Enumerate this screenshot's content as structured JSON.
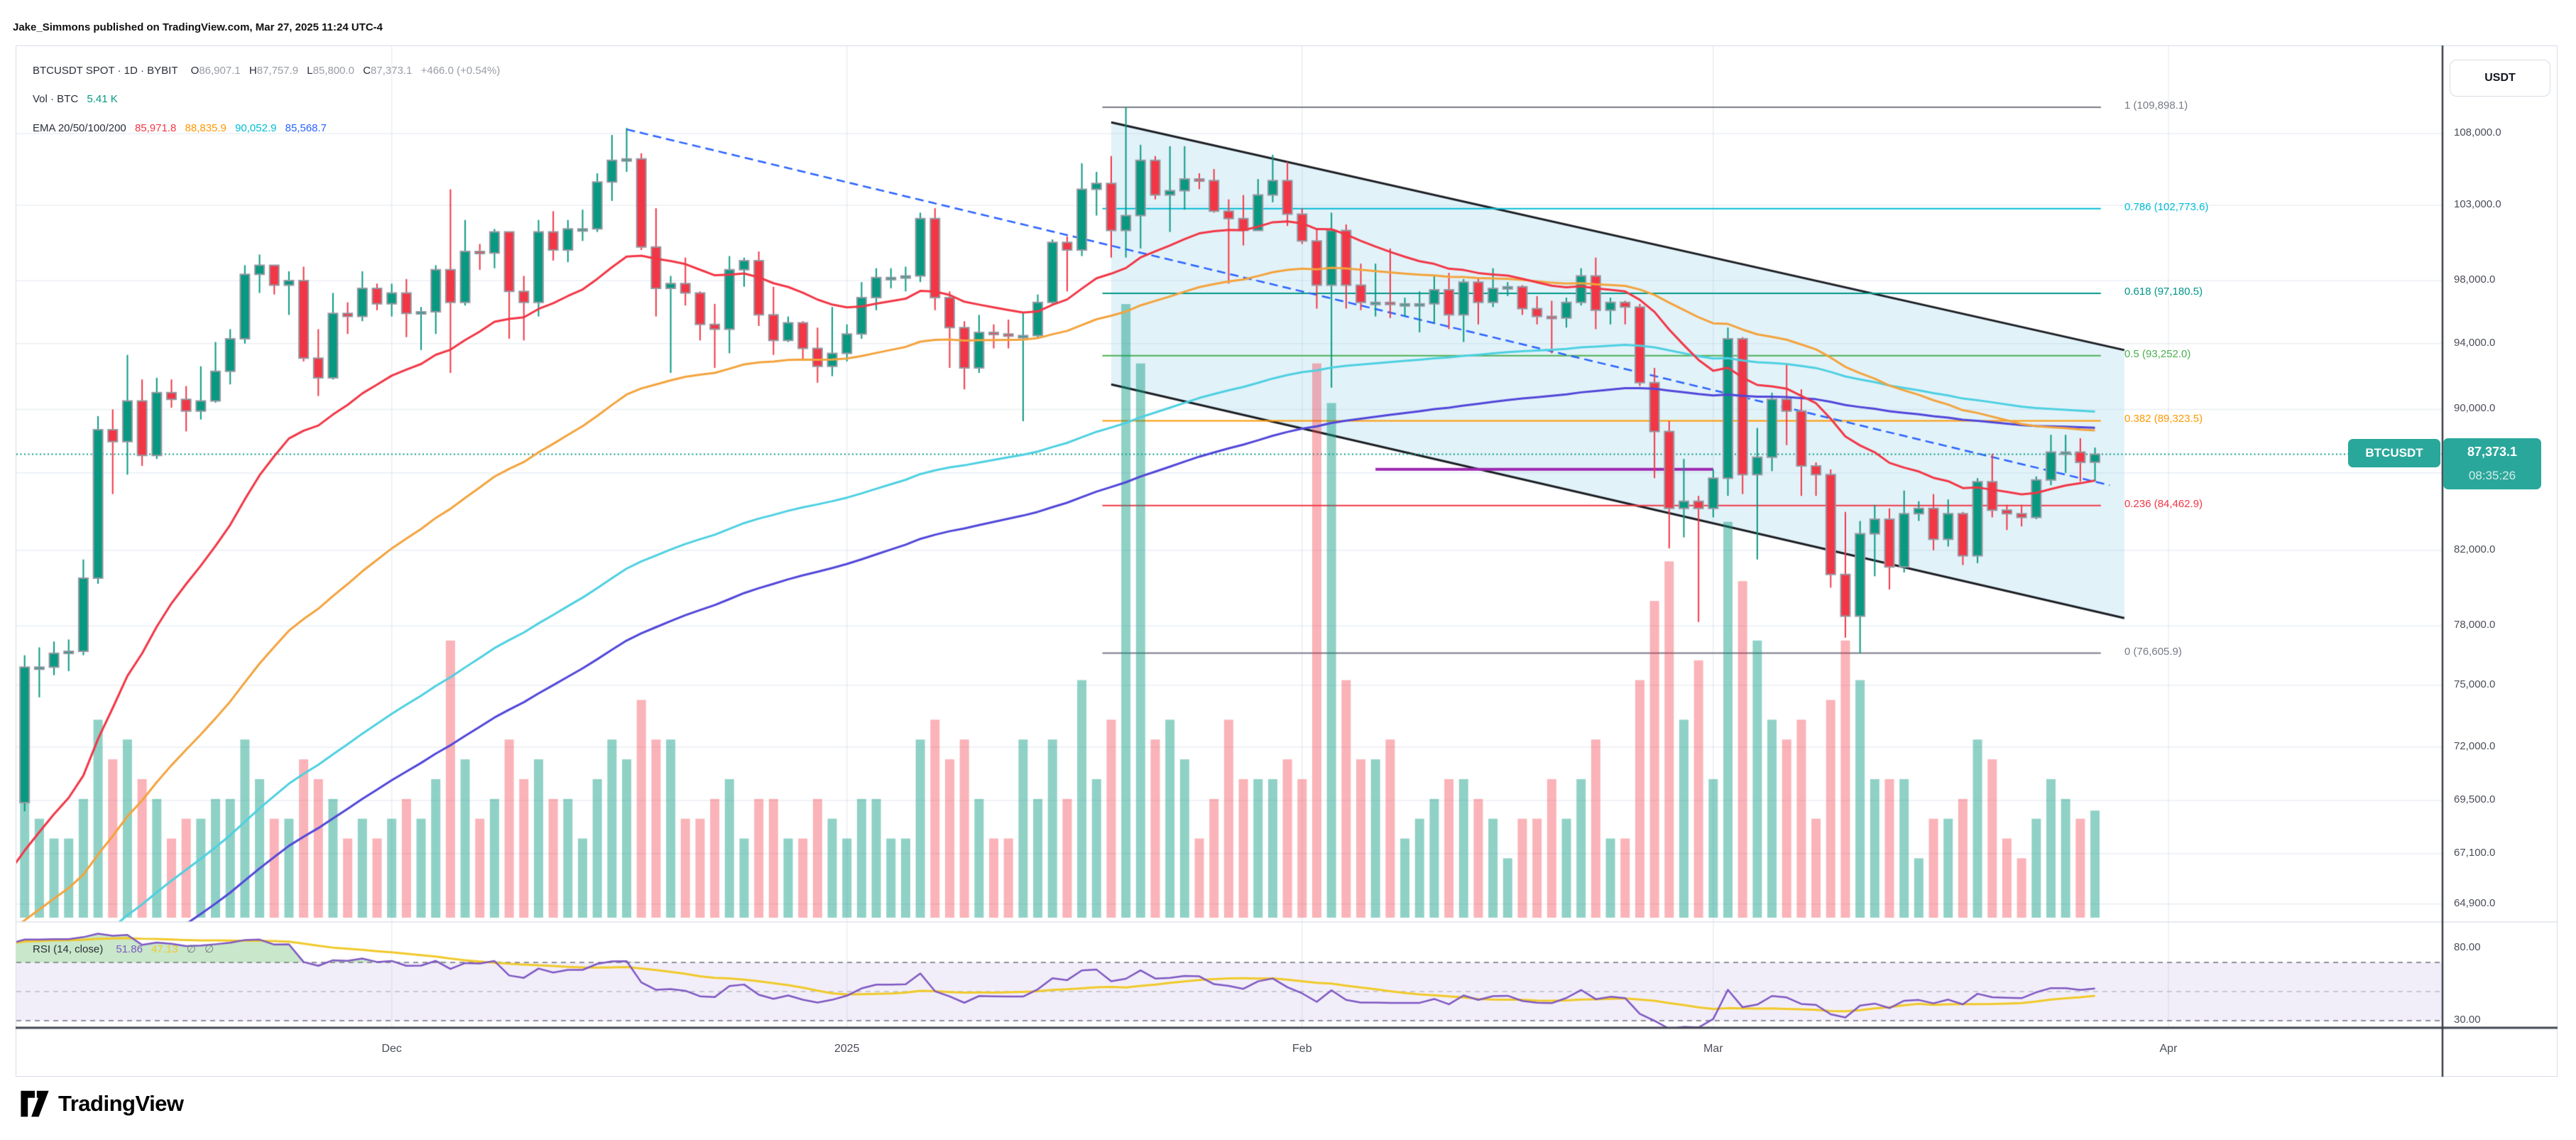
{
  "published_line": "Jake_Simmons published on TradingView.com, Mar 27, 2025 11:24 UTC-4",
  "toolbar": {
    "currency_button": "USDT"
  },
  "legend": {
    "title": "BTCUSDT SPOT · 1D · BYBIT",
    "open_label": "O",
    "open": "86,907.1",
    "high_label": "H",
    "high": "87,757.9",
    "low_label": "L",
    "low": "85,800.0",
    "close_label": "C",
    "close": "87,373.1",
    "change": "+466.0 (+0.54%)",
    "vol_label": "Vol · BTC",
    "vol_value": "5.41 K",
    "vol_color": "#089981",
    "ema_label": "EMA 20/50/100/200",
    "ema_values": [
      {
        "text": "85,971.8",
        "color": "#f23645"
      },
      {
        "text": "88,835.9",
        "color": "#ff9800"
      },
      {
        "text": "90,052.9",
        "color": "#00bcd4"
      },
      {
        "text": "85,568.7",
        "color": "#2962ff"
      }
    ]
  },
  "rsi_legend": {
    "title": "RSI (14, close)",
    "value": "51.86",
    "value_color": "#7e57c2",
    "ma_value": "47.13",
    "ma_color": "#f0c929",
    "empty1": "∅",
    "empty2": "∅",
    "empty_color": "#787b86"
  },
  "price_badge": {
    "symbol_tag": "BTCUSDT",
    "price": "87,373.1",
    "countdown": "08:35:26",
    "color": "#2aa79b"
  },
  "price_axis": {
    "ticks": [
      {
        "price": 108000,
        "label": "108,000.0"
      },
      {
        "price": 103000,
        "label": "103,000.0"
      },
      {
        "price": 98000,
        "label": "98,000.0"
      },
      {
        "price": 94000,
        "label": "94,000.0"
      },
      {
        "price": 90000,
        "label": "90,000.0"
      },
      {
        "price": 86300,
        "label": ""
      },
      {
        "price": 82000,
        "label": "82,000.0"
      },
      {
        "price": 78000,
        "label": "78,000.0"
      },
      {
        "price": 75000,
        "label": "75,000.0"
      },
      {
        "price": 72000,
        "label": "72,000.0"
      },
      {
        "price": 69500,
        "label": "69,500.0"
      },
      {
        "price": 67100,
        "label": "67,100.0"
      },
      {
        "price": 64900,
        "label": "64,900.0"
      }
    ],
    "rsi_ticks": [
      {
        "value": 80,
        "label": "80.00"
      },
      {
        "value": 30,
        "label": "30.00"
      }
    ]
  },
  "time_axis": {
    "ticks": [
      {
        "day": 26,
        "label": "Dec"
      },
      {
        "day": 57,
        "label": "2025"
      },
      {
        "day": 88,
        "label": "Feb"
      },
      {
        "day": 116,
        "label": "Mar"
      },
      {
        "day": 147,
        "label": "Apr"
      }
    ]
  },
  "logo": {
    "text": "TradingView"
  },
  "chart_data": {
    "type": "candlestick",
    "symbol": "BTCUSDT",
    "market": "SPOT",
    "interval": "1D",
    "exchange": "BYBIT",
    "price_scale": "log",
    "current_price": 87373.1,
    "current_volume_k": 5.41,
    "up_color": "#089981",
    "down_color": "#f23645",
    "body_border_color": "#9598a1",
    "volume_up_color": "rgba(8,153,129,0.45)",
    "volume_down_color": "rgba(242,54,69,0.38)",
    "grid_color": "rgba(90,120,170,0.13)",
    "current_price_line_color": "#089981",
    "candles": [
      [
        67800,
        70600,
        67500,
        69400,
        5
      ],
      [
        69400,
        76500,
        69000,
        75900,
        8
      ],
      [
        75900,
        76900,
        74400,
        75900,
        5
      ],
      [
        75900,
        77200,
        75500,
        76600,
        4
      ],
      [
        76600,
        77300,
        75700,
        76700,
        4
      ],
      [
        76700,
        81500,
        76500,
        80500,
        6
      ],
      [
        80500,
        89600,
        80200,
        88800,
        10
      ],
      [
        88800,
        90000,
        85100,
        88100,
        8
      ],
      [
        88100,
        93300,
        86200,
        90500,
        9
      ],
      [
        90500,
        91800,
        86700,
        87300,
        7
      ],
      [
        87300,
        91900,
        87100,
        91000,
        6
      ],
      [
        91000,
        91800,
        90100,
        90600,
        4
      ],
      [
        90600,
        91400,
        88700,
        89900,
        5
      ],
      [
        89900,
        92600,
        89400,
        90500,
        5
      ],
      [
        90500,
        94100,
        90400,
        92300,
        6
      ],
      [
        92300,
        94900,
        91500,
        94300,
        6
      ],
      [
        94300,
        99000,
        94000,
        98400,
        9
      ],
      [
        98400,
        99700,
        97200,
        99000,
        7
      ],
      [
        99000,
        99000,
        97100,
        97700,
        5
      ],
      [
        97700,
        98600,
        95800,
        98000,
        5
      ],
      [
        98000,
        98900,
        92900,
        93100,
        8
      ],
      [
        93100,
        94900,
        90800,
        91900,
        7
      ],
      [
        91900,
        97200,
        91800,
        95900,
        6
      ],
      [
        95900,
        96600,
        94600,
        95700,
        4
      ],
      [
        95700,
        98600,
        95400,
        97500,
        5
      ],
      [
        97500,
        97800,
        96100,
        96500,
        4
      ],
      [
        96500,
        97800,
        95700,
        97200,
        5
      ],
      [
        97200,
        98100,
        94400,
        95900,
        6
      ],
      [
        95900,
        96300,
        93600,
        96000,
        5
      ],
      [
        96000,
        99000,
        94600,
        98700,
        7
      ],
      [
        98700,
        104100,
        92200,
        96600,
        14
      ],
      [
        96600,
        102000,
        96400,
        99900,
        8
      ],
      [
        99900,
        100400,
        98700,
        99800,
        5
      ],
      [
        99800,
        101400,
        98800,
        101200,
        6
      ],
      [
        101200,
        101200,
        94300,
        97300,
        9
      ],
      [
        97300,
        98300,
        94200,
        96600,
        7
      ],
      [
        96600,
        102000,
        95700,
        101200,
        8
      ],
      [
        101200,
        102600,
        99300,
        100000,
        6
      ],
      [
        100000,
        102000,
        99200,
        101400,
        6
      ],
      [
        101400,
        102700,
        100600,
        101400,
        4
      ],
      [
        101400,
        105200,
        101200,
        104600,
        7
      ],
      [
        104600,
        107900,
        103300,
        106100,
        9
      ],
      [
        106100,
        108400,
        105300,
        106200,
        8
      ],
      [
        106200,
        106600,
        100000,
        100200,
        11
      ],
      [
        100200,
        102800,
        95700,
        97500,
        9
      ],
      [
        97500,
        98300,
        92200,
        97800,
        9
      ],
      [
        97800,
        99500,
        96400,
        97200,
        5
      ],
      [
        97200,
        97300,
        94200,
        95200,
        5
      ],
      [
        95200,
        96500,
        92500,
        94900,
        6
      ],
      [
        94900,
        99600,
        93400,
        98700,
        7
      ],
      [
        98700,
        99500,
        97600,
        99300,
        4
      ],
      [
        99300,
        99900,
        95100,
        95800,
        6
      ],
      [
        95800,
        97600,
        93300,
        94200,
        6
      ],
      [
        94200,
        95700,
        94100,
        95300,
        4
      ],
      [
        95300,
        95400,
        93000,
        93700,
        4
      ],
      [
        93700,
        95000,
        91600,
        92600,
        6
      ],
      [
        92600,
        96300,
        92000,
        93400,
        5
      ],
      [
        93400,
        95200,
        92900,
        94600,
        4
      ],
      [
        94600,
        97900,
        94300,
        96900,
        6
      ],
      [
        96900,
        98800,
        96100,
        98200,
        6
      ],
      [
        98200,
        98800,
        97500,
        98200,
        4
      ],
      [
        98200,
        98900,
        97300,
        98300,
        4
      ],
      [
        98300,
        102500,
        97900,
        102100,
        9
      ],
      [
        102100,
        102800,
        96100,
        96900,
        10
      ],
      [
        96900,
        97300,
        92500,
        95000,
        8
      ],
      [
        95000,
        95400,
        91200,
        92500,
        9
      ],
      [
        92500,
        95800,
        92200,
        94700,
        6
      ],
      [
        94700,
        95200,
        93700,
        94600,
        4
      ],
      [
        94600,
        95500,
        93700,
        94500,
        4
      ],
      [
        94500,
        95900,
        89300,
        94500,
        9
      ],
      [
        94500,
        97100,
        94300,
        96600,
        6
      ],
      [
        96600,
        100700,
        96500,
        100500,
        9
      ],
      [
        100500,
        100900,
        97300,
        100000,
        6
      ],
      [
        100000,
        105900,
        99600,
        104100,
        12
      ],
      [
        104100,
        105300,
        102300,
        104500,
        7
      ],
      [
        104500,
        106400,
        99500,
        101300,
        10
      ],
      [
        101300,
        109900,
        99500,
        102300,
        31
      ],
      [
        102300,
        107200,
        100100,
        106100,
        28
      ],
      [
        106100,
        106400,
        103400,
        103700,
        9
      ],
      [
        103700,
        107100,
        101200,
        104000,
        10
      ],
      [
        104000,
        107100,
        102700,
        104800,
        8
      ],
      [
        104800,
        105200,
        104100,
        104700,
        4
      ],
      [
        104700,
        105500,
        102500,
        102600,
        6
      ],
      [
        102600,
        103400,
        97800,
        102100,
        10
      ],
      [
        102100,
        103700,
        100300,
        101300,
        7
      ],
      [
        101300,
        104800,
        101300,
        103700,
        7
      ],
      [
        103700,
        106500,
        103200,
        104700,
        7
      ],
      [
        104700,
        106000,
        101600,
        102400,
        8
      ],
      [
        102400,
        102800,
        100400,
        100600,
        7
      ],
      [
        100600,
        101400,
        96200,
        97700,
        28
      ],
      [
        97700,
        102500,
        91300,
        101300,
        26
      ],
      [
        101300,
        101700,
        96200,
        97700,
        12
      ],
      [
        97700,
        99100,
        96100,
        96600,
        8
      ],
      [
        96600,
        99100,
        95700,
        96600,
        8
      ],
      [
        96600,
        100100,
        95600,
        96500,
        9
      ],
      [
        96500,
        96900,
        95700,
        96500,
        4
      ],
      [
        96500,
        97300,
        94700,
        96500,
        5
      ],
      [
        96500,
        98300,
        95300,
        97400,
        6
      ],
      [
        97400,
        98500,
        94900,
        95800,
        7
      ],
      [
        95800,
        98100,
        94100,
        97900,
        7
      ],
      [
        97900,
        98100,
        95200,
        96600,
        6
      ],
      [
        96600,
        98800,
        96300,
        97500,
        5
      ],
      [
        97500,
        97900,
        97000,
        97600,
        3
      ],
      [
        97600,
        97700,
        95800,
        96200,
        5
      ],
      [
        96200,
        97000,
        95200,
        95700,
        5
      ],
      [
        95700,
        96700,
        93400,
        95600,
        7
      ],
      [
        95600,
        96900,
        95000,
        96600,
        5
      ],
      [
        96600,
        98800,
        96400,
        98300,
        7
      ],
      [
        98300,
        99500,
        94900,
        96100,
        9
      ],
      [
        96100,
        96900,
        95200,
        96600,
        4
      ],
      [
        96600,
        96700,
        95200,
        96300,
        4
      ],
      [
        96300,
        96500,
        91400,
        91600,
        12
      ],
      [
        91600,
        92500,
        86000,
        88700,
        16
      ],
      [
        88700,
        89300,
        82100,
        84300,
        18
      ],
      [
        84300,
        87100,
        82700,
        84700,
        10
      ],
      [
        84700,
        85000,
        78200,
        84300,
        13
      ],
      [
        84300,
        86500,
        83800,
        86000,
        7
      ],
      [
        86000,
        95000,
        85000,
        94300,
        20
      ],
      [
        94300,
        94400,
        85100,
        86200,
        17
      ],
      [
        86200,
        88900,
        81500,
        87200,
        14
      ],
      [
        87200,
        91000,
        86400,
        90600,
        10
      ],
      [
        90600,
        92800,
        87900,
        89900,
        9
      ],
      [
        89900,
        91200,
        85000,
        86700,
        10
      ],
      [
        86700,
        86900,
        85000,
        86200,
        5
      ],
      [
        86200,
        86500,
        80000,
        80700,
        11
      ],
      [
        80700,
        84100,
        77400,
        78500,
        14
      ],
      [
        78500,
        83600,
        76600,
        82900,
        12
      ],
      [
        82900,
        84500,
        80600,
        83700,
        7
      ],
      [
        83700,
        84300,
        79900,
        81100,
        7
      ],
      [
        81100,
        85300,
        80800,
        84000,
        7
      ],
      [
        84000,
        84700,
        83600,
        84300,
        3
      ],
      [
        84300,
        85100,
        82000,
        82600,
        5
      ],
      [
        82600,
        84800,
        82200,
        84000,
        5
      ],
      [
        84000,
        84100,
        81200,
        81700,
        6
      ],
      [
        81700,
        86000,
        81300,
        85800,
        9
      ],
      [
        85800,
        87400,
        83800,
        84200,
        8
      ],
      [
        84200,
        84500,
        83100,
        84000,
        4
      ],
      [
        84000,
        84500,
        83300,
        83800,
        3
      ],
      [
        83800,
        86100,
        83700,
        85900,
        5
      ],
      [
        85900,
        88500,
        85600,
        87500,
        7
      ],
      [
        87500,
        88500,
        86300,
        87500,
        6
      ],
      [
        87500,
        88300,
        85800,
        86900,
        5
      ],
      [
        86907.1,
        87757.9,
        85800,
        87373.1,
        5.41
      ]
    ],
    "emas": [
      {
        "period": 20,
        "color": "#f23645",
        "value": 85971.8
      },
      {
        "period": 50,
        "color": "#f3a33c",
        "value": 88835.9
      },
      {
        "period": 100,
        "color": "#4dd0e1",
        "value": 90052.9
      },
      {
        "period": 200,
        "color": "#5146d9",
        "value": 85568.7
      }
    ],
    "fibonacci": {
      "start_day": 74.4,
      "end_day": 142.4,
      "levels": [
        {
          "ratio": 1,
          "price": 109898.1,
          "label": "1 (109,898.1)",
          "color": "#787b86"
        },
        {
          "ratio": 0.786,
          "price": 102773.6,
          "label": "0.786 (102,773.6)",
          "color": "#00bcd4"
        },
        {
          "ratio": 0.618,
          "price": 97180.5,
          "label": "0.618 (97,180.5)",
          "color": "#009688"
        },
        {
          "ratio": 0.5,
          "price": 93252.0,
          "label": "0.5 (93,252.0)",
          "color": "#4caf50"
        },
        {
          "ratio": 0.382,
          "price": 89323.5,
          "label": "0.382 (89,323.5)",
          "color": "#ff9800"
        },
        {
          "ratio": 0.236,
          "price": 84462.9,
          "label": "0.236 (84,462.9)",
          "color": "#f23645"
        },
        {
          "ratio": 0,
          "price": 76605.9,
          "label": "0 (76,605.9)",
          "color": "#787b86"
        }
      ]
    },
    "channel": {
      "color": "#1b1e23",
      "fill": "rgba(125,196,226,0.22)",
      "upper": [
        [
          75,
          108800
        ],
        [
          144,
          93600
        ]
      ],
      "lower": [
        [
          75,
          91500
        ],
        [
          144,
          78400
        ]
      ]
    },
    "trendline_dashed": {
      "color": "#2962ff",
      "from": [
        42,
        108300
      ],
      "to": [
        143,
        85600
      ]
    },
    "support_line": {
      "color": "#9c27b0",
      "price": 86500,
      "from_day": 93,
      "to_day": 116
    },
    "rsi": {
      "period": 14,
      "upper_band": 70,
      "middle_band": 50,
      "lower_band": 30,
      "line_color": "#7e57c2",
      "ma_color": "#f0c929",
      "band_fill": "rgba(126,87,194,0.10)",
      "overbought_fill": "rgba(76,175,80,0.30)"
    }
  }
}
